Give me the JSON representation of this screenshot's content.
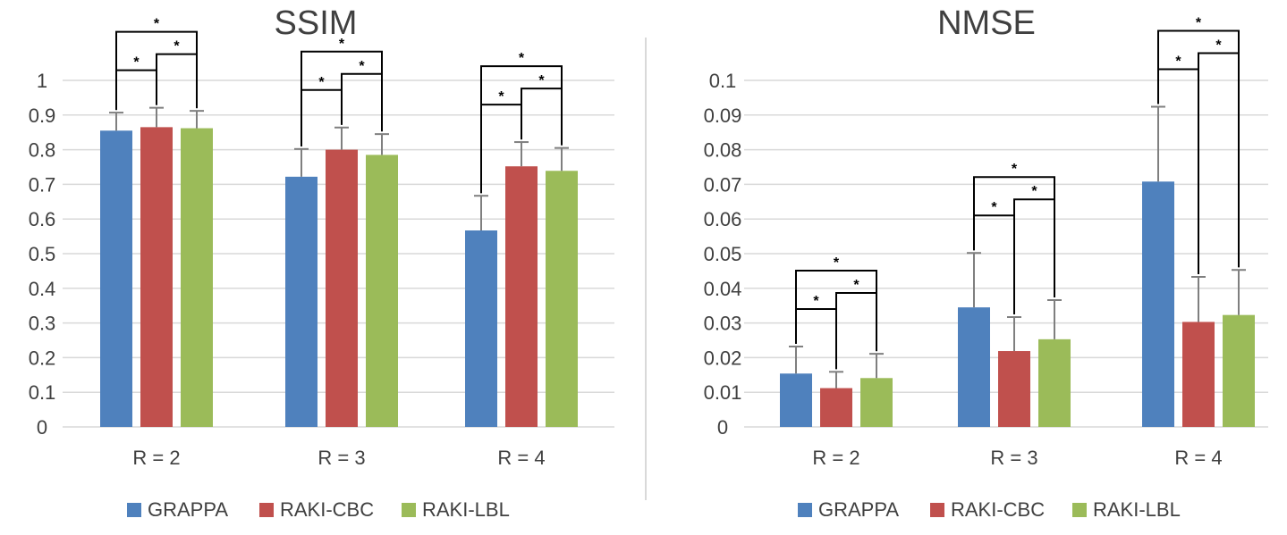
{
  "colors": {
    "GRAPPA": "#4f81bd",
    "RAKI-CBC": "#c0504d",
    "RAKI-LBL": "#9bbb59",
    "grid": "#d9d9d9",
    "errorbar": "#7f7f7f",
    "text": "#404040",
    "bracket": "#000000",
    "divider": "#d9d9d9"
  },
  "chart_data": [
    {
      "type": "bar",
      "title": "SSIM",
      "xlabel": "",
      "ylabel": "",
      "ylim": [
        0,
        1
      ],
      "yticks": [
        "0",
        "0.1",
        "0.2",
        "0.3",
        "0.4",
        "0.5",
        "0.6",
        "0.7",
        "0.8",
        "0.9",
        "1"
      ],
      "grid": true,
      "legend_position": "bottom",
      "categories": [
        "R = 2",
        "R = 3",
        "R = 4"
      ],
      "series": [
        {
          "name": "GRAPPA",
          "values": [
            0.855,
            0.722,
            0.567
          ],
          "errors": [
            0.052,
            0.08,
            0.1
          ]
        },
        {
          "name": "RAKI-CBC",
          "values": [
            0.865,
            0.8,
            0.752
          ],
          "errors": [
            0.056,
            0.064,
            0.07
          ]
        },
        {
          "name": "RAKI-LBL",
          "values": [
            0.862,
            0.785,
            0.739
          ],
          "errors": [
            0.05,
            0.06,
            0.066
          ]
        }
      ],
      "significance": [
        {
          "group": 0,
          "from": 0,
          "to": 1,
          "label": "*"
        },
        {
          "group": 0,
          "from": 1,
          "to": 2,
          "label": "*"
        },
        {
          "group": 0,
          "from": 0,
          "to": 2,
          "label": "*"
        },
        {
          "group": 1,
          "from": 0,
          "to": 1,
          "label": "*"
        },
        {
          "group": 1,
          "from": 1,
          "to": 2,
          "label": "*"
        },
        {
          "group": 1,
          "from": 0,
          "to": 2,
          "label": "*"
        },
        {
          "group": 2,
          "from": 0,
          "to": 1,
          "label": "*"
        },
        {
          "group": 2,
          "from": 1,
          "to": 2,
          "label": "*"
        },
        {
          "group": 2,
          "from": 0,
          "to": 2,
          "label": "*"
        }
      ]
    },
    {
      "type": "bar",
      "title": "NMSE",
      "xlabel": "",
      "ylabel": "",
      "ylim": [
        0,
        0.1
      ],
      "yticks": [
        "0",
        "0.01",
        "0.02",
        "0.03",
        "0.04",
        "0.05",
        "0.06",
        "0.07",
        "0.08",
        "0.09",
        "0.1"
      ],
      "grid": true,
      "legend_position": "bottom",
      "categories": [
        "R = 2",
        "R = 3",
        "R = 4"
      ],
      "series": [
        {
          "name": "GRAPPA",
          "values": [
            0.0154,
            0.0345,
            0.0708
          ],
          "errors": [
            0.0078,
            0.0157,
            0.0216
          ]
        },
        {
          "name": "RAKI-CBC",
          "values": [
            0.0112,
            0.0219,
            0.0303
          ],
          "errors": [
            0.0047,
            0.0098,
            0.013
          ]
        },
        {
          "name": "RAKI-LBL",
          "values": [
            0.0141,
            0.0253,
            0.0323
          ],
          "errors": [
            0.007,
            0.0113,
            0.013
          ]
        }
      ],
      "significance": [
        {
          "group": 0,
          "from": 0,
          "to": 1,
          "label": "*"
        },
        {
          "group": 0,
          "from": 1,
          "to": 2,
          "label": "*"
        },
        {
          "group": 0,
          "from": 0,
          "to": 2,
          "label": "*"
        },
        {
          "group": 1,
          "from": 0,
          "to": 1,
          "label": "*"
        },
        {
          "group": 1,
          "from": 1,
          "to": 2,
          "label": "*"
        },
        {
          "group": 1,
          "from": 0,
          "to": 2,
          "label": "*"
        },
        {
          "group": 2,
          "from": 0,
          "to": 1,
          "label": "*"
        },
        {
          "group": 2,
          "from": 1,
          "to": 2,
          "label": "*"
        },
        {
          "group": 2,
          "from": 0,
          "to": 2,
          "label": "*"
        }
      ]
    }
  ]
}
